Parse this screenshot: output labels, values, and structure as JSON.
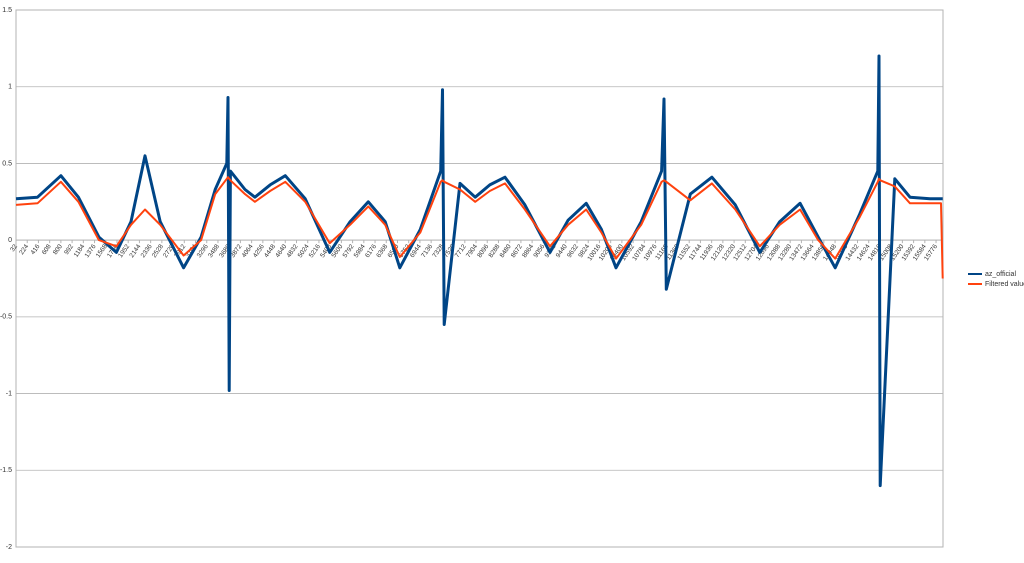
{
  "chart_data": {
    "type": "line",
    "x": [
      32,
      400,
      800,
      1100,
      1450,
      1750,
      2000,
      2240,
      2500,
      2900,
      3200,
      3440,
      3640,
      3660,
      3680,
      3700,
      3950,
      4120,
      4380,
      4640,
      4980,
      5400,
      5750,
      6060,
      6350,
      6600,
      6950,
      7300,
      7330,
      7360,
      7630,
      7890,
      8140,
      8400,
      8740,
      9170,
      9480,
      9790,
      10050,
      10300,
      10730,
      11080,
      11120,
      11160,
      11570,
      11940,
      12340,
      12760,
      13100,
      13450,
      13760,
      14050,
      14470,
      14780,
      14800,
      14820,
      15070,
      15330,
      15670,
      15860,
      15890
    ],
    "series": [
      {
        "name": "az_official",
        "color": "#004586",
        "values": [
          0.27,
          0.28,
          0.42,
          0.28,
          0.02,
          -0.08,
          0.12,
          0.55,
          0.12,
          -0.18,
          0.02,
          0.33,
          0.5,
          0.93,
          -0.98,
          0.45,
          0.33,
          0.28,
          0.36,
          0.42,
          0.27,
          -0.08,
          0.12,
          0.25,
          0.12,
          -0.18,
          0.07,
          0.45,
          0.98,
          -0.55,
          0.37,
          0.28,
          0.36,
          0.41,
          0.23,
          -0.08,
          0.13,
          0.24,
          0.07,
          -0.18,
          0.12,
          0.45,
          0.92,
          -0.32,
          0.3,
          0.41,
          0.23,
          -0.08,
          0.12,
          0.24,
          0.02,
          -0.18,
          0.17,
          0.45,
          1.2,
          -1.6,
          0.4,
          0.28,
          0.27,
          0.27,
          0.27
        ]
      },
      {
        "name": "Filtered value",
        "color": "#ff420e",
        "values": [
          0.23,
          0.24,
          0.38,
          0.25,
          0.0,
          -0.04,
          0.1,
          0.2,
          0.1,
          -0.1,
          0.0,
          0.3,
          0.4,
          0.41,
          0.4,
          0.39,
          0.3,
          0.25,
          0.32,
          0.38,
          0.25,
          -0.02,
          0.1,
          0.22,
          0.1,
          -0.11,
          0.05,
          0.38,
          0.39,
          0.38,
          0.33,
          0.25,
          0.32,
          0.37,
          0.2,
          -0.04,
          0.1,
          0.2,
          0.05,
          -0.12,
          0.1,
          0.38,
          0.39,
          0.38,
          0.26,
          0.37,
          0.2,
          -0.04,
          0.1,
          0.2,
          0.0,
          -0.12,
          0.15,
          0.38,
          0.4,
          0.39,
          0.35,
          0.24,
          0.24,
          0.24,
          -0.25
        ]
      }
    ],
    "xlim": [
      32,
      15895
    ],
    "xticks": [
      32,
      224,
      416,
      608,
      800,
      992,
      1184,
      1376,
      1568,
      1760,
      1952,
      2144,
      2336,
      2528,
      2720,
      2912,
      3104,
      3296,
      3488,
      3680,
      3872,
      4064,
      4256,
      4448,
      4640,
      4832,
      5024,
      5216,
      5408,
      5600,
      5792,
      5984,
      6176,
      6368,
      6560,
      6752,
      6944,
      7136,
      7328,
      7520,
      7712,
      7904,
      8096,
      8288,
      8480,
      8672,
      8864,
      9056,
      9248,
      9440,
      9632,
      9824,
      10016,
      10208,
      10400,
      10592,
      10784,
      10976,
      11168,
      11360,
      11552,
      11744,
      11936,
      12128,
      12320,
      12512,
      12704,
      12896,
      13088,
      13280,
      13472,
      13664,
      13856,
      14048,
      14240,
      14432,
      14624,
      14816,
      15008,
      15200,
      15392,
      15584,
      15776
    ],
    "ylim": [
      -2,
      1.5
    ],
    "yticks": [
      -2,
      -1.5,
      -1,
      -0.5,
      0,
      0.5,
      1,
      1.5
    ],
    "grid": true,
    "legend": "right"
  }
}
